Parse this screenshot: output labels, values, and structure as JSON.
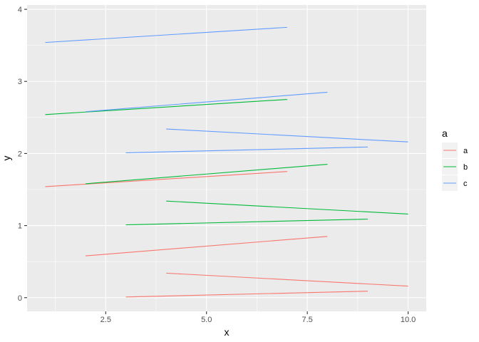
{
  "chart_data": {
    "type": "line",
    "xlabel": "x",
    "ylabel": "y",
    "xlim": [
      0.55,
      10.45
    ],
    "ylim": [
      -0.19,
      4.06
    ],
    "x_ticks": [
      2.5,
      5.0,
      7.5,
      10.0
    ],
    "x_tick_labels": [
      "2.5",
      "5.0",
      "7.5",
      "10.0"
    ],
    "y_ticks": [
      0,
      1,
      2,
      3,
      4
    ],
    "y_tick_labels": [
      "0",
      "1",
      "2",
      "3",
      "4"
    ],
    "grid": true,
    "legend": {
      "title": "a",
      "placement": "right",
      "entries": [
        "a",
        "b",
        "c"
      ]
    },
    "colors": {
      "a": "#F8766D",
      "b": "#00BA38",
      "c": "#619CFF"
    },
    "series": [
      {
        "name": "a",
        "segments": [
          {
            "x": [
              1,
              7
            ],
            "y": [
              1.54,
              1.75
            ]
          },
          {
            "x": [
              2,
              8
            ],
            "y": [
              0.58,
              0.85
            ]
          },
          {
            "x": [
              3,
              9
            ],
            "y": [
              0.01,
              0.09
            ]
          },
          {
            "x": [
              4,
              10
            ],
            "y": [
              0.34,
              0.16
            ]
          }
        ]
      },
      {
        "name": "b",
        "segments": [
          {
            "x": [
              1,
              7
            ],
            "y": [
              2.54,
              2.75
            ]
          },
          {
            "x": [
              2,
              8
            ],
            "y": [
              1.58,
              1.85
            ]
          },
          {
            "x": [
              3,
              9
            ],
            "y": [
              1.01,
              1.09
            ]
          },
          {
            "x": [
              4,
              10
            ],
            "y": [
              1.34,
              1.16
            ]
          }
        ]
      },
      {
        "name": "c",
        "segments": [
          {
            "x": [
              1,
              7
            ],
            "y": [
              3.54,
              3.75
            ]
          },
          {
            "x": [
              2,
              8
            ],
            "y": [
              2.58,
              2.85
            ]
          },
          {
            "x": [
              3,
              9
            ],
            "y": [
              2.01,
              2.09
            ]
          },
          {
            "x": [
              4,
              10
            ],
            "y": [
              2.34,
              2.16
            ]
          }
        ]
      }
    ]
  }
}
